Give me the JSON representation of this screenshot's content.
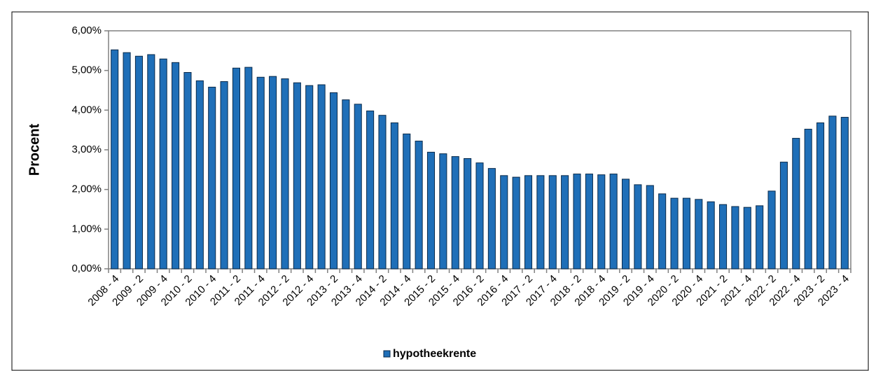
{
  "chart_data": {
    "type": "bar",
    "y_label": "Procent",
    "categories": [
      "2008 - 4",
      null,
      "2009 - 2",
      null,
      "2009 - 4",
      null,
      "2010 - 2",
      null,
      "2010 - 4",
      null,
      "2011 - 2",
      null,
      "2011 - 4",
      null,
      "2012 - 2",
      null,
      "2012 - 4",
      null,
      "2013 - 2",
      null,
      "2013 - 4",
      null,
      "2014 - 2",
      null,
      "2014 - 4",
      null,
      "2015 - 2",
      null,
      "2015 - 4",
      null,
      "2016 - 2",
      null,
      "2016 - 4",
      null,
      "2017 - 2",
      null,
      "2017 - 4",
      null,
      "2018 - 2",
      null,
      "2018 - 4",
      null,
      "2019 - 2",
      null,
      "2019 - 4",
      null,
      "2020 - 2",
      null,
      "2020 - 4",
      null,
      "2021 - 2",
      null,
      "2021 - 4",
      null,
      "2022 - 2",
      null,
      "2022 - 4",
      null,
      "2023 - 2",
      null,
      "2023 - 4"
    ],
    "series": [
      {
        "name": "hypotheekrente",
        "color": "#1f6fb8",
        "values": [
          5.52,
          5.45,
          5.36,
          5.4,
          5.29,
          5.2,
          4.95,
          4.74,
          4.58,
          4.72,
          5.06,
          5.08,
          4.83,
          4.85,
          4.79,
          4.69,
          4.62,
          4.64,
          4.44,
          4.26,
          4.15,
          3.98,
          3.87,
          3.68,
          3.4,
          3.22,
          2.94,
          2.9,
          2.83,
          2.78,
          2.67,
          2.53,
          2.35,
          2.31,
          2.35,
          2.35,
          2.35,
          2.35,
          2.39,
          2.39,
          2.37,
          2.39,
          2.26,
          2.12,
          2.1,
          1.89,
          1.78,
          1.78,
          1.75,
          1.69,
          1.62,
          1.57,
          1.55,
          1.59,
          1.96,
          2.69,
          3.29,
          3.52,
          3.68,
          3.85,
          3.82
        ]
      }
    ],
    "ylim": [
      0,
      6
    ],
    "yticks": [
      {
        "value": 0,
        "label": "0,00%"
      },
      {
        "value": 1,
        "label": "1,00%"
      },
      {
        "value": 2,
        "label": "2,00%"
      },
      {
        "value": 3,
        "label": "3,00%"
      },
      {
        "value": 4,
        "label": "4,00%"
      },
      {
        "value": 5,
        "label": "5,00%"
      },
      {
        "value": 6,
        "label": "6,00%"
      }
    ],
    "grid": false,
    "legend": "bottom"
  }
}
